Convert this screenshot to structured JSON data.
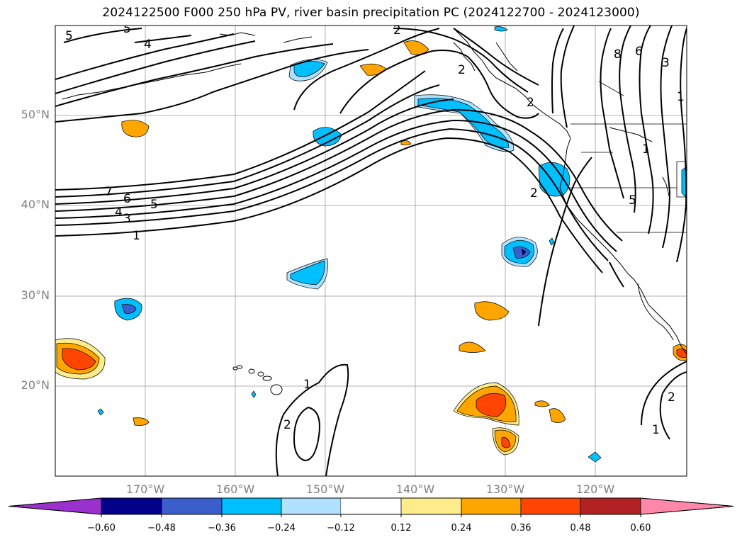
{
  "title": "2024122500 F000 250 hPa PV, river basin precipitation PC (2024122700 - 2024123000)",
  "map": {
    "lat_labels": [
      "50°N",
      "40°N",
      "30°N",
      "20°N"
    ],
    "lon_labels": [
      "170°W",
      "160°W",
      "150°W",
      "140°W",
      "130°W",
      "120°W"
    ],
    "contour_labels": [
      "5",
      "5",
      "4",
      "2",
      "2",
      "7",
      "6",
      "5",
      "4",
      "3",
      "1",
      "2",
      "8",
      "6",
      "3",
      "1",
      "1",
      "2",
      "1",
      "2",
      "1",
      "2",
      "5"
    ]
  },
  "colorbar": {
    "ticks": [
      "−0.60",
      "−0.48",
      "−0.36",
      "−0.24",
      "−0.12",
      "0.12",
      "0.24",
      "0.36",
      "0.48",
      "0.60"
    ],
    "colors": [
      "#9932CC",
      "#00008B",
      "#3A5FCD",
      "#00BFFF",
      "#B0E2FF",
      "#FFFFFF",
      "#FFEC8B",
      "#FFA500",
      "#FF4500",
      "#B22222",
      "#FF88AA"
    ]
  }
}
